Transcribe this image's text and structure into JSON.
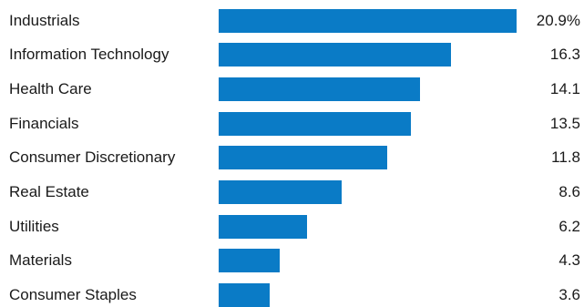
{
  "chart_data": {
    "type": "bar",
    "orientation": "horizontal",
    "categories": [
      "Industrials",
      "Information Technology",
      "Health Care",
      "Financials",
      "Consumer Discretionary",
      "Real Estate",
      "Utilities",
      "Materials",
      "Consumer Staples"
    ],
    "values": [
      20.9,
      16.3,
      14.1,
      13.5,
      11.8,
      8.6,
      6.2,
      4.3,
      3.6
    ],
    "value_labels": [
      "20.9%",
      "16.3",
      "14.1",
      "13.5",
      "11.8",
      "8.6",
      "6.2",
      "4.3",
      "3.6"
    ],
    "xlim": [
      0,
      20.9
    ],
    "grid": false,
    "legend": "none",
    "bar_color": "#0a7bc6"
  }
}
